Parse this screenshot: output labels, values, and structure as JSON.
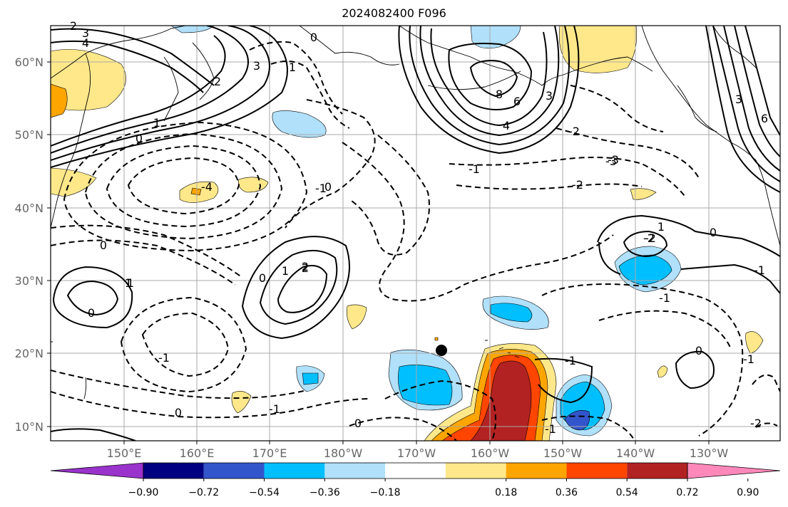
{
  "title": "2024082400 F096",
  "map": {
    "lat_labels": [
      "60°N",
      "50°N",
      "40°N",
      "30°N",
      "20°N",
      "10°N"
    ],
    "lon_labels": [
      "150°E",
      "160°E",
      "170°E",
      "180°W",
      "170°W",
      "160°W",
      "150°W",
      "140°W",
      "130°W"
    ],
    "contour_labels": [
      "3",
      "4",
      "2",
      "1",
      "0",
      "2",
      "3",
      "1",
      "0",
      "6",
      "8",
      "4",
      "3",
      "-1",
      "-3",
      "-2",
      "-4",
      "0",
      "-1",
      "-2",
      "-3",
      "0",
      "1",
      "2",
      "-1",
      "0",
      "1",
      "2",
      "-1",
      "0",
      "-2",
      "-1",
      "0",
      "-1",
      "-1",
      "-2",
      "-1",
      "0",
      "0",
      "-1",
      "1",
      "-2",
      "0",
      "1",
      "3",
      "6"
    ],
    "colors": {
      "land_line": "#000000",
      "grid": "#aaaaaa",
      "contour": "#000000"
    }
  },
  "colorbar": {
    "ticks": [
      "−0.90",
      "−0.72",
      "−0.54",
      "−0.36",
      "−0.18",
      "0.18",
      "0.36",
      "0.54",
      "0.72",
      "0.90"
    ],
    "colors": [
      "#9933cc",
      "#000080",
      "#3355cc",
      "#00bfff",
      "#b0e0fa",
      "#ffffff",
      "#ffe88a",
      "#ffa500",
      "#ff4500",
      "#b22222",
      "#ff88bb"
    ]
  }
}
